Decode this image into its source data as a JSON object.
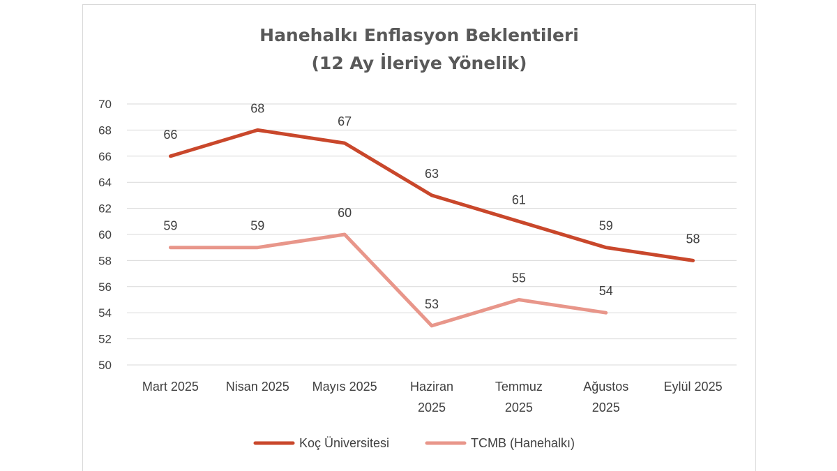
{
  "chart_data": {
    "type": "line",
    "title": [
      "Hanehalkı Enflasyon Beklentileri",
      "(12 Ay İleriye Yönelik)"
    ],
    "categories": [
      [
        "Mart 2025"
      ],
      [
        "Nisan 2025"
      ],
      [
        "Mayıs 2025"
      ],
      [
        "Haziran",
        "2025"
      ],
      [
        "Temmuz",
        "2025"
      ],
      [
        "Ağustos",
        "2025"
      ],
      [
        "Eylül 2025"
      ]
    ],
    "ylim": [
      50,
      70
    ],
    "yticks": [
      50,
      52,
      54,
      56,
      58,
      60,
      62,
      64,
      66,
      68,
      70
    ],
    "grid": true,
    "legend_position": "bottom",
    "series": [
      {
        "name": "Koç Üniversitesi",
        "color": "#c9472b",
        "values": [
          66,
          68,
          67,
          63,
          61,
          59,
          58
        ]
      },
      {
        "name": "TCMB (Hanehalkı)",
        "color": "#e8968a",
        "values": [
          59,
          59,
          60,
          53,
          55,
          54,
          null
        ]
      }
    ]
  }
}
